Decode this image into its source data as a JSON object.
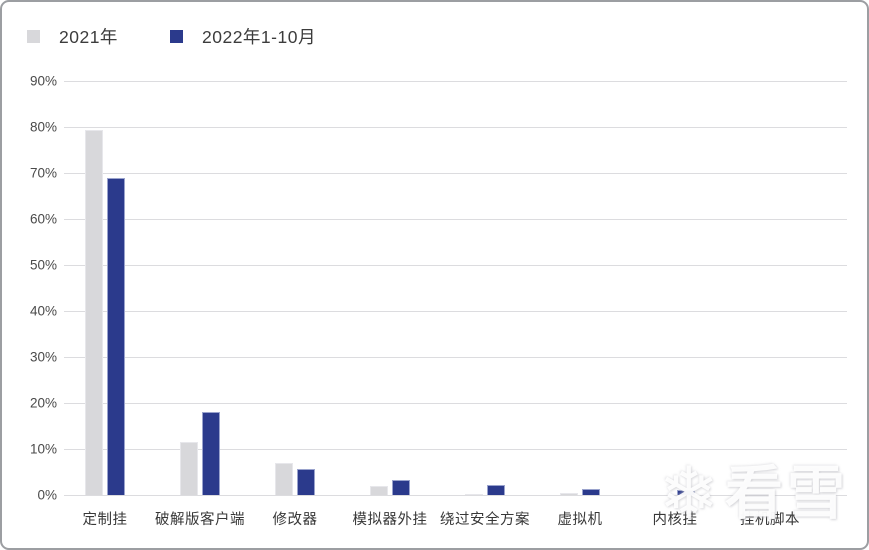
{
  "legend": {
    "items": [
      {
        "label": "2021年",
        "color": "#d8d8db"
      },
      {
        "label": "2022年1-10月",
        "color": "#2b3a8c"
      }
    ]
  },
  "chart_data": {
    "type": "bar",
    "title": "",
    "xlabel": "",
    "ylabel": "",
    "categories": [
      "定制挂",
      "破解版客户端",
      "修改器",
      "模拟器外挂",
      "绕过安全方案",
      "虚拟机",
      "内核挂",
      "挂机脚本"
    ],
    "series": [
      {
        "name": "2021年",
        "color": "#d8d8db",
        "values": [
          79.3,
          11.5,
          7.0,
          2.0,
          0.3,
          0.4,
          0,
          0
        ]
      },
      {
        "name": "2022年1-10月",
        "color": "#2b3a8c",
        "values": [
          69.0,
          18.0,
          5.7,
          3.3,
          2.1,
          1.2,
          1.0,
          0
        ]
      }
    ],
    "ylim": [
      0,
      90
    ],
    "ytick_step": 10,
    "ytick_labels": [
      "0%",
      "10%",
      "20%",
      "30%",
      "40%",
      "50%",
      "60%",
      "70%",
      "80%",
      "90%"
    ],
    "grid": true,
    "legend_position": "top-left"
  },
  "watermark": {
    "icon": "snowflake-icon",
    "text": "看雪"
  }
}
